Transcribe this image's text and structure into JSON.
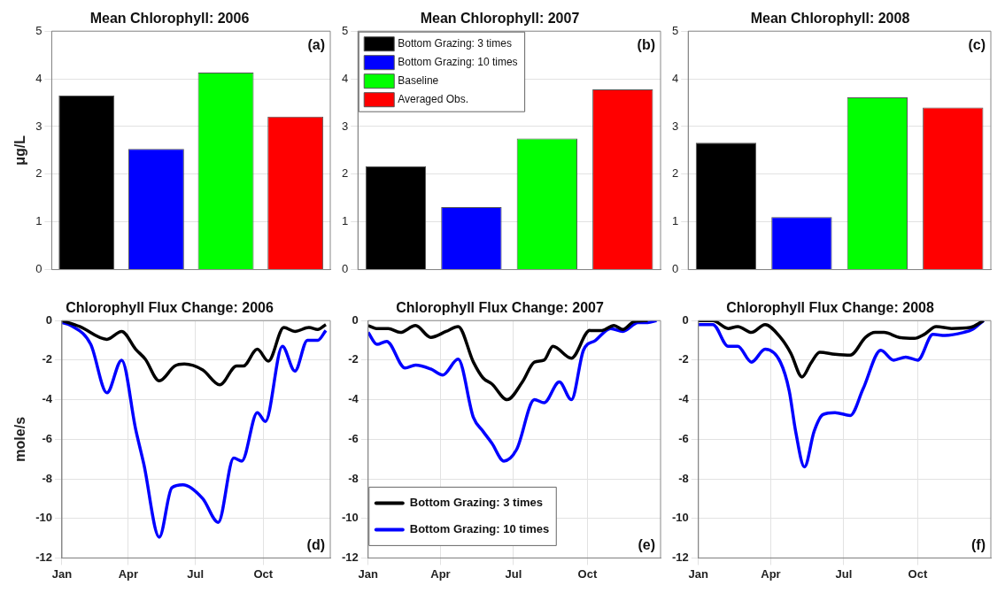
{
  "chart_data": [
    {
      "type": "bar",
      "title": "Mean Chlorophyll: 2006",
      "ylabel": "μg/L",
      "categories": [
        null,
        null,
        null,
        null
      ],
      "values": [
        3.65,
        2.53,
        4.13,
        3.21
      ],
      "colors": [
        "#000000",
        "#0000ff",
        "#00ff00",
        "#ff0000"
      ],
      "ylim": [
        0,
        5
      ],
      "yticks": [
        0,
        1,
        2,
        3,
        4,
        5
      ],
      "grid": "y",
      "annotations": [
        "(a)"
      ]
    },
    {
      "type": "bar",
      "title": "Mean Chlorophyll: 2007",
      "categories": [
        null,
        null,
        null,
        null
      ],
      "series": [
        {
          "name": "Bottom Grazing: 3 times",
          "color": "#000000",
          "values": [
            2.17,
            null,
            null,
            null
          ]
        },
        {
          "name": "Bottom Grazing: 10 times",
          "color": "#0000ff",
          "values": [
            null,
            1.31,
            null,
            null
          ]
        },
        {
          "name": "Baseline",
          "color": "#00ff00",
          "values": [
            null,
            null,
            2.75,
            null
          ]
        },
        {
          "name": "Averaged Obs.",
          "color": "#ff0000",
          "values": [
            null,
            null,
            null,
            3.78
          ]
        }
      ],
      "ylim": [
        0,
        5
      ],
      "yticks": [
        0,
        1,
        2,
        3,
        4,
        5
      ],
      "grid": "y",
      "legend": "top left",
      "annotations": [
        "(b)"
      ]
    },
    {
      "type": "bar",
      "title": "Mean Chlorophyll: 2008",
      "categories": [
        null,
        null,
        null,
        null
      ],
      "values": [
        2.66,
        1.1,
        3.61,
        3.4
      ],
      "colors": [
        "#000000",
        "#0000ff",
        "#00ff00",
        "#ff0000"
      ],
      "ylim": [
        0,
        5
      ],
      "yticks": [
        0,
        1,
        2,
        3,
        4,
        5
      ],
      "grid": "y",
      "annotations": [
        "(c)"
      ]
    },
    {
      "type": "line",
      "title": "Chlorophyll Flux Change: 2006",
      "ylabel": "mole/s",
      "xlim": [
        "--01-01",
        "--12-31"
      ],
      "xticks": [
        {
          "value": "--01-01",
          "label": "Jan"
        },
        {
          "value": "--04-01",
          "label": "Apr"
        },
        {
          "value": "--07-01",
          "label": "Jul"
        },
        {
          "value": "--10-01",
          "label": "Oct"
        }
      ],
      "ylim": [
        -12,
        0
      ],
      "yticks": [
        -12,
        -10,
        -8,
        -6,
        -4,
        -2,
        0
      ],
      "grid": true,
      "annotations": [
        "(d)"
      ],
      "series": [
        {
          "color": "#000000",
          "x": [
            "--01-01",
            "--01-25",
            "--03-03",
            "--03-23",
            "--04-11",
            "--04-24",
            "--05-13",
            "--06-03",
            "--06-16",
            "--07-11",
            "--08-03",
            "--08-26",
            "--09-04",
            "--09-23",
            "--10-08",
            "--10-29",
            "--11-13",
            "--12-02",
            "--12-14",
            "--12-25"
          ],
          "values": [
            0,
            -0.3,
            -0.95,
            -0.55,
            -1.45,
            -1.95,
            -3.05,
            -2.3,
            -2.2,
            -2.5,
            -3.25,
            -2.3,
            -2.3,
            -1.45,
            -2.05,
            -0.35,
            -0.55,
            -0.35,
            -0.45,
            -0.2
          ]
        },
        {
          "color": "#0000ff",
          "x": [
            "--01-01",
            "--01-13",
            "--02-09",
            "--03-03",
            "--03-23",
            "--04-11",
            "--04-22",
            "--05-13",
            "--05-30",
            "--06-14",
            "--07-11",
            "--08-01",
            "--08-22",
            "--09-02",
            "--09-23",
            "--10-04",
            "--10-27",
            "--11-13",
            "--11-30",
            "--12-14",
            "--12-25"
          ],
          "values": [
            -0.1,
            -0.25,
            -1.2,
            -3.65,
            -2.0,
            -5.5,
            -7.25,
            -10.95,
            -8.45,
            -8.3,
            -9.0,
            -10.2,
            -6.95,
            -7.1,
            -4.65,
            -5.1,
            -1.3,
            -2.55,
            -1.0,
            -1.0,
            -0.5
          ]
        }
      ]
    },
    {
      "type": "line",
      "title": "Chlorophyll Flux Change: 2007",
      "xlim": [
        "--01-01",
        "--12-31"
      ],
      "xticks": [
        {
          "value": "--01-01",
          "label": "Jan"
        },
        {
          "value": "--04-01",
          "label": "Apr"
        },
        {
          "value": "--07-01",
          "label": "Jul"
        },
        {
          "value": "--10-01",
          "label": "Oct"
        }
      ],
      "ylim": [
        -12,
        0
      ],
      "yticks": [
        -12,
        -10,
        -8,
        -6,
        -4,
        -2,
        0
      ],
      "grid": true,
      "legend": "bottom left",
      "annotations": [
        "(e)"
      ],
      "series": [
        {
          "name": "Bottom Grazing: 3 times",
          "color": "#000000",
          "x": [
            "--01-01",
            "--01-11",
            "--01-26",
            "--02-10",
            "--03-01",
            "--03-20",
            "--04-08",
            "--04-23",
            "--05-12",
            "--05-24",
            "--06-04",
            "--06-23",
            "--07-12",
            "--07-27",
            "--08-08",
            "--08-19",
            "--09-11",
            "--10-04",
            "--10-19",
            "--11-03",
            "--11-14",
            "--11-28",
            "--12-15"
          ],
          "values": [
            -0.25,
            -0.4,
            -0.4,
            -0.6,
            -0.25,
            -0.85,
            -0.55,
            -0.3,
            -2.1,
            -2.9,
            -3.2,
            -4.0,
            -3.1,
            -2.1,
            -2.0,
            -1.3,
            -1.9,
            -0.5,
            -0.5,
            -0.25,
            -0.45,
            -0.05,
            0
          ]
        },
        {
          "name": "Bottom Grazing: 10 times",
          "color": "#0000ff",
          "x": [
            "--01-01",
            "--01-12",
            "--01-24",
            "--02-16",
            "--03-01",
            "--03-20",
            "--04-04",
            "--04-23",
            "--05-12",
            "--05-24",
            "--06-04",
            "--06-19",
            "--07-05",
            "--07-27",
            "--08-08",
            "--08-27",
            "--09-11",
            "--09-26",
            "--10-11",
            "--10-30",
            "--11-14",
            "--12-03",
            "--12-15",
            "--12-26"
          ],
          "values": [
            -0.6,
            -1.2,
            -1.05,
            -2.4,
            -2.25,
            -2.45,
            -2.75,
            -1.95,
            -4.9,
            -5.6,
            -6.2,
            -7.1,
            -6.5,
            -4.0,
            -4.15,
            -3.1,
            -4.0,
            -1.5,
            -1.0,
            -0.4,
            -0.55,
            -0.1,
            -0.1,
            0
          ]
        }
      ]
    },
    {
      "type": "line",
      "title": "Chlorophyll Flux Change: 2008",
      "xlim": [
        "--01-01",
        "--12-31"
      ],
      "xticks": [
        {
          "value": "--01-01",
          "label": "Jan"
        },
        {
          "value": "--04-01",
          "label": "Apr"
        },
        {
          "value": "--07-01",
          "label": "Jul"
        },
        {
          "value": "--10-01",
          "label": "Oct"
        }
      ],
      "ylim": [
        -12,
        0
      ],
      "yticks": [
        -12,
        -10,
        -8,
        -6,
        -4,
        -2,
        0
      ],
      "grid": true,
      "annotations": [
        "(f)"
      ],
      "series": [
        {
          "color": "#000000",
          "x": [
            "--01-01",
            "--01-19",
            "--02-07",
            "--02-19",
            "--03-08",
            "--03-25",
            "--04-13",
            "--04-26",
            "--05-10",
            "--05-21",
            "--06-01",
            "--06-20",
            "--07-09",
            "--07-28",
            "--08-09",
            "--08-20",
            "--09-08",
            "--09-27",
            "--10-09",
            "--10-24",
            "--11-12",
            "--12-05",
            "--12-22"
          ],
          "values": [
            0,
            0,
            -0.4,
            -0.3,
            -0.6,
            -0.2,
            -0.85,
            -1.65,
            -2.85,
            -2.15,
            -1.6,
            -1.7,
            -1.75,
            -0.85,
            -0.6,
            -0.6,
            -0.85,
            -0.9,
            -0.7,
            -0.3,
            -0.4,
            -0.35,
            0
          ]
        },
        {
          "color": "#0000ff",
          "x": [
            "--01-01",
            "--01-19",
            "--02-07",
            "--02-19",
            "--03-08",
            "--03-25",
            "--04-13",
            "--04-24",
            "--05-02",
            "--05-13",
            "--05-25",
            "--06-05",
            "--06-20",
            "--07-09",
            "--07-25",
            "--08-16",
            "--09-01",
            "--09-16",
            "--10-01",
            "--10-20",
            "--11-04",
            "--11-27",
            "--12-08",
            "--12-22"
          ],
          "values": [
            -0.2,
            -0.2,
            -1.3,
            -1.3,
            -2.1,
            -1.45,
            -2.1,
            -3.55,
            -5.6,
            -7.4,
            -5.6,
            -4.75,
            -4.65,
            -4.8,
            -3.45,
            -1.5,
            -2.0,
            -1.85,
            -2.0,
            -0.7,
            -0.75,
            -0.6,
            -0.45,
            0
          ]
        }
      ]
    }
  ]
}
